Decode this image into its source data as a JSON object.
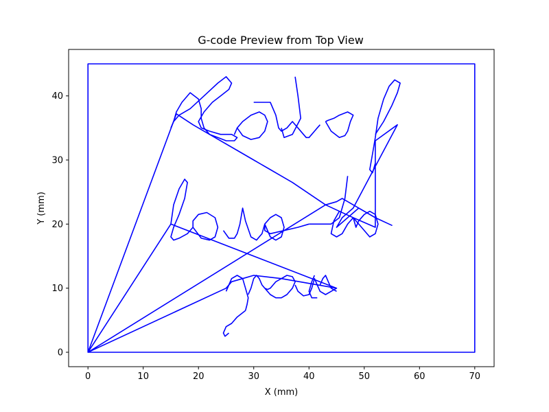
{
  "chart_data": {
    "type": "line",
    "title": "G-code Preview from Top View",
    "xlabel": "X (mm)",
    "ylabel": "Y (mm)",
    "xlim": [
      -3.5,
      73.5
    ],
    "ylim": [
      -2.25,
      47.25
    ],
    "xticks": [
      0,
      10,
      20,
      30,
      40,
      50,
      60,
      70
    ],
    "yticks": [
      0,
      10,
      20,
      30,
      40
    ],
    "grid": false,
    "line_color": "#0000ff",
    "series": [
      {
        "x": [
          0,
          0,
          70,
          70,
          0,
          0,
          16,
          19,
          22,
          27,
          30,
          33,
          37,
          43,
          48,
          52,
          52,
          56,
          48,
          46,
          45,
          49,
          52,
          55,
          52,
          50,
          48,
          46,
          45,
          43,
          0,
          25,
          26,
          28,
          30,
          35,
          45,
          15,
          0
        ],
        "y": [
          0,
          45,
          45,
          0,
          0,
          0,
          37.2,
          35.5,
          34,
          31.5,
          30,
          28.5,
          26.5,
          23,
          21,
          19.5,
          33,
          35.5,
          22.5,
          21,
          19.5,
          22.5,
          21,
          19.8,
          21,
          22,
          23,
          24,
          23.5,
          23,
          0,
          10,
          11,
          11.5,
          12,
          11.5,
          10,
          20,
          0
        ]
      },
      {
        "x": [
          15.0,
          15.5,
          16.5,
          18.5,
          21.0,
          23.5,
          25.0,
          26.0,
          25.5,
          24.0,
          22.5,
          21.0,
          20.0,
          20.5,
          22.0,
          24.0,
          26.0,
          27.0,
          26.5,
          25.0,
          23.5,
          22.0,
          21.0,
          20.5,
          20.5,
          20.0,
          18.5,
          17.0,
          16.0,
          15.5,
          15.0
        ],
        "y": [
          35.0,
          36.0,
          37.0,
          38.0,
          40.0,
          42.0,
          43.0,
          42.0,
          41.0,
          40.0,
          39.0,
          37.5,
          36.0,
          35.0,
          34.5,
          34.0,
          34.0,
          33.5,
          33.0,
          33.0,
          33.5,
          34.0,
          35.0,
          36.5,
          38.0,
          39.5,
          40.5,
          39.0,
          37.5,
          36.0,
          35.0
        ]
      },
      {
        "x": [
          27.0,
          28.0,
          29.5,
          31.0,
          32.0,
          32.5,
          32.0,
          31.0,
          29.5,
          28.0,
          27.0,
          26.5,
          27.0
        ],
        "y": [
          35.0,
          33.8,
          33.2,
          33.5,
          34.5,
          36.0,
          37.0,
          37.5,
          37.0,
          36.0,
          35.0,
          34.0,
          35.0
        ]
      },
      {
        "x": [
          30.0,
          31.5,
          33.0,
          34.0,
          34.5,
          35.0,
          36.0,
          37.0,
          38.0,
          39.0,
          39.5,
          40.0,
          40.5,
          41.0,
          41.5,
          42.0
        ],
        "y": [
          39.0,
          39.0,
          39.0,
          37.0,
          35.0,
          34.5,
          35.0,
          36.0,
          35.0,
          34.0,
          33.5,
          33.5,
          34.0,
          34.5,
          35.0,
          35.5
        ]
      },
      {
        "x": [
          37.5,
          38.0,
          38.5,
          37.0,
          35.5,
          35.0
        ],
        "y": [
          43.0,
          40.0,
          36.5,
          34.0,
          33.5,
          35.0
        ]
      },
      {
        "x": [
          43.0,
          44.0,
          45.5,
          46.5,
          47.0,
          47.5,
          48.0,
          47.0,
          45.5,
          44.5,
          43.5,
          43.0
        ],
        "y": [
          36.0,
          34.5,
          33.5,
          33.8,
          34.5,
          36.0,
          37.0,
          37.5,
          37.0,
          36.5,
          36.2,
          36.0
        ]
      },
      {
        "x": [
          52.0,
          53.5,
          55.0,
          56.0,
          56.5,
          55.5,
          54.5,
          53.5,
          52.5,
          52.0,
          51.5,
          51.0,
          51.5,
          52.0
        ],
        "y": [
          34.0,
          36.0,
          38.5,
          40.5,
          42.0,
          42.5,
          41.5,
          39.5,
          36.5,
          33.5,
          31.0,
          28.5,
          28.0,
          29.5
        ]
      },
      {
        "x": [
          15.0,
          15.5,
          16.5,
          17.5,
          18.0,
          17.5,
          16.5,
          15.5,
          15.0,
          15.5,
          16.5,
          18.0,
          19.0
        ],
        "y": [
          20.0,
          23.0,
          25.5,
          27.0,
          26.5,
          24.0,
          21.5,
          19.5,
          18.0,
          17.5,
          17.8,
          18.5,
          19.5
        ]
      },
      {
        "x": [
          19.0,
          20.5,
          22.0,
          23.0,
          23.5,
          23.0,
          21.5,
          20.0,
          19.0,
          19.0
        ],
        "y": [
          19.5,
          17.8,
          17.5,
          18.0,
          19.5,
          21.0,
          21.8,
          21.5,
          20.5,
          19.5
        ]
      },
      {
        "x": [
          24.5,
          25.5,
          26.5,
          27.0,
          27.5,
          28.0,
          28.5,
          29.5,
          30.5,
          31.5,
          32.0
        ],
        "y": [
          19.0,
          17.8,
          17.8,
          18.5,
          20.0,
          22.5,
          20.5,
          18.0,
          17.5,
          18.5,
          20.0
        ]
      },
      {
        "x": [
          32.0,
          33.0,
          34.0,
          35.0,
          35.5,
          35.0,
          34.0,
          33.0,
          32.0,
          32.0,
          33.0,
          35.5,
          38.0,
          40.0
        ],
        "y": [
          20.0,
          18.0,
          17.5,
          18.0,
          19.5,
          21.0,
          21.5,
          21.0,
          20.0,
          19.0,
          18.5,
          19.0,
          19.5,
          20.0
        ]
      },
      {
        "x": [
          40.0,
          44.0,
          45.5,
          46.5,
          47.0
        ],
        "y": [
          20.0,
          20.0,
          21.0,
          24.0,
          27.5
        ]
      },
      {
        "x": [
          45.5,
          44.5,
          44.0,
          45.0,
          46.0,
          47.0,
          48.0
        ],
        "y": [
          22.0,
          20.5,
          18.5,
          18.0,
          18.5,
          20.0,
          21.0
        ]
      },
      {
        "x": [
          48.0,
          49.5,
          51.0,
          52.0,
          52.5,
          52.0,
          51.0,
          50.0,
          49.0,
          48.5,
          48.0
        ],
        "y": [
          21.0,
          19.5,
          18.0,
          18.5,
          20.0,
          21.5,
          22.0,
          21.5,
          20.5,
          19.5,
          21.0
        ]
      },
      {
        "x": [
          25.0,
          25.5,
          26.0,
          27.0,
          28.0,
          28.5,
          29.0,
          28.8,
          28.5
        ],
        "y": [
          9.5,
          10.5,
          11.5,
          12.0,
          11.5,
          10.0,
          8.5,
          7.5,
          6.5
        ]
      },
      {
        "x": [
          28.5,
          27.0,
          26.0,
          25.0,
          24.5,
          24.8,
          25.5
        ],
        "y": [
          6.5,
          5.5,
          4.5,
          4.0,
          3.0,
          2.5,
          3.0
        ]
      },
      {
        "x": [
          29.0,
          29.5,
          30.0,
          30.5,
          31.0,
          31.5,
          32.0
        ],
        "y": [
          9.0,
          10.0,
          11.5,
          12.0,
          11.5,
          10.5,
          10.0
        ]
      },
      {
        "x": [
          32.0,
          33.0,
          34.0,
          35.0,
          36.0,
          37.0,
          37.5,
          37.0,
          36.0,
          35.0,
          34.0,
          33.5,
          33.0,
          32.5,
          32.0
        ],
        "y": [
          10.0,
          9.0,
          8.5,
          8.5,
          9.0,
          10.0,
          11.0,
          11.8,
          12.0,
          11.5,
          11.0,
          10.5,
          10.0,
          9.8,
          10.0
        ]
      },
      {
        "x": [
          37.5,
          38.0,
          39.0,
          40.0,
          40.5,
          41.0,
          41.5,
          42.0,
          43.0,
          44.0,
          45.0
        ],
        "y": [
          10.5,
          9.5,
          8.8,
          9.0,
          10.0,
          11.5,
          10.5,
          9.5,
          9.0,
          9.5,
          10.0
        ]
      },
      {
        "x": [
          41.0,
          40.5,
          40.0,
          40.5,
          41.5
        ],
        "y": [
          12.0,
          11.0,
          9.5,
          8.5,
          8.5
        ]
      },
      {
        "x": [
          42.0,
          42.5,
          43.0,
          43.5,
          44.0,
          45.0
        ],
        "y": [
          10.5,
          11.5,
          12.0,
          11.0,
          10.0,
          9.5
        ]
      }
    ]
  }
}
